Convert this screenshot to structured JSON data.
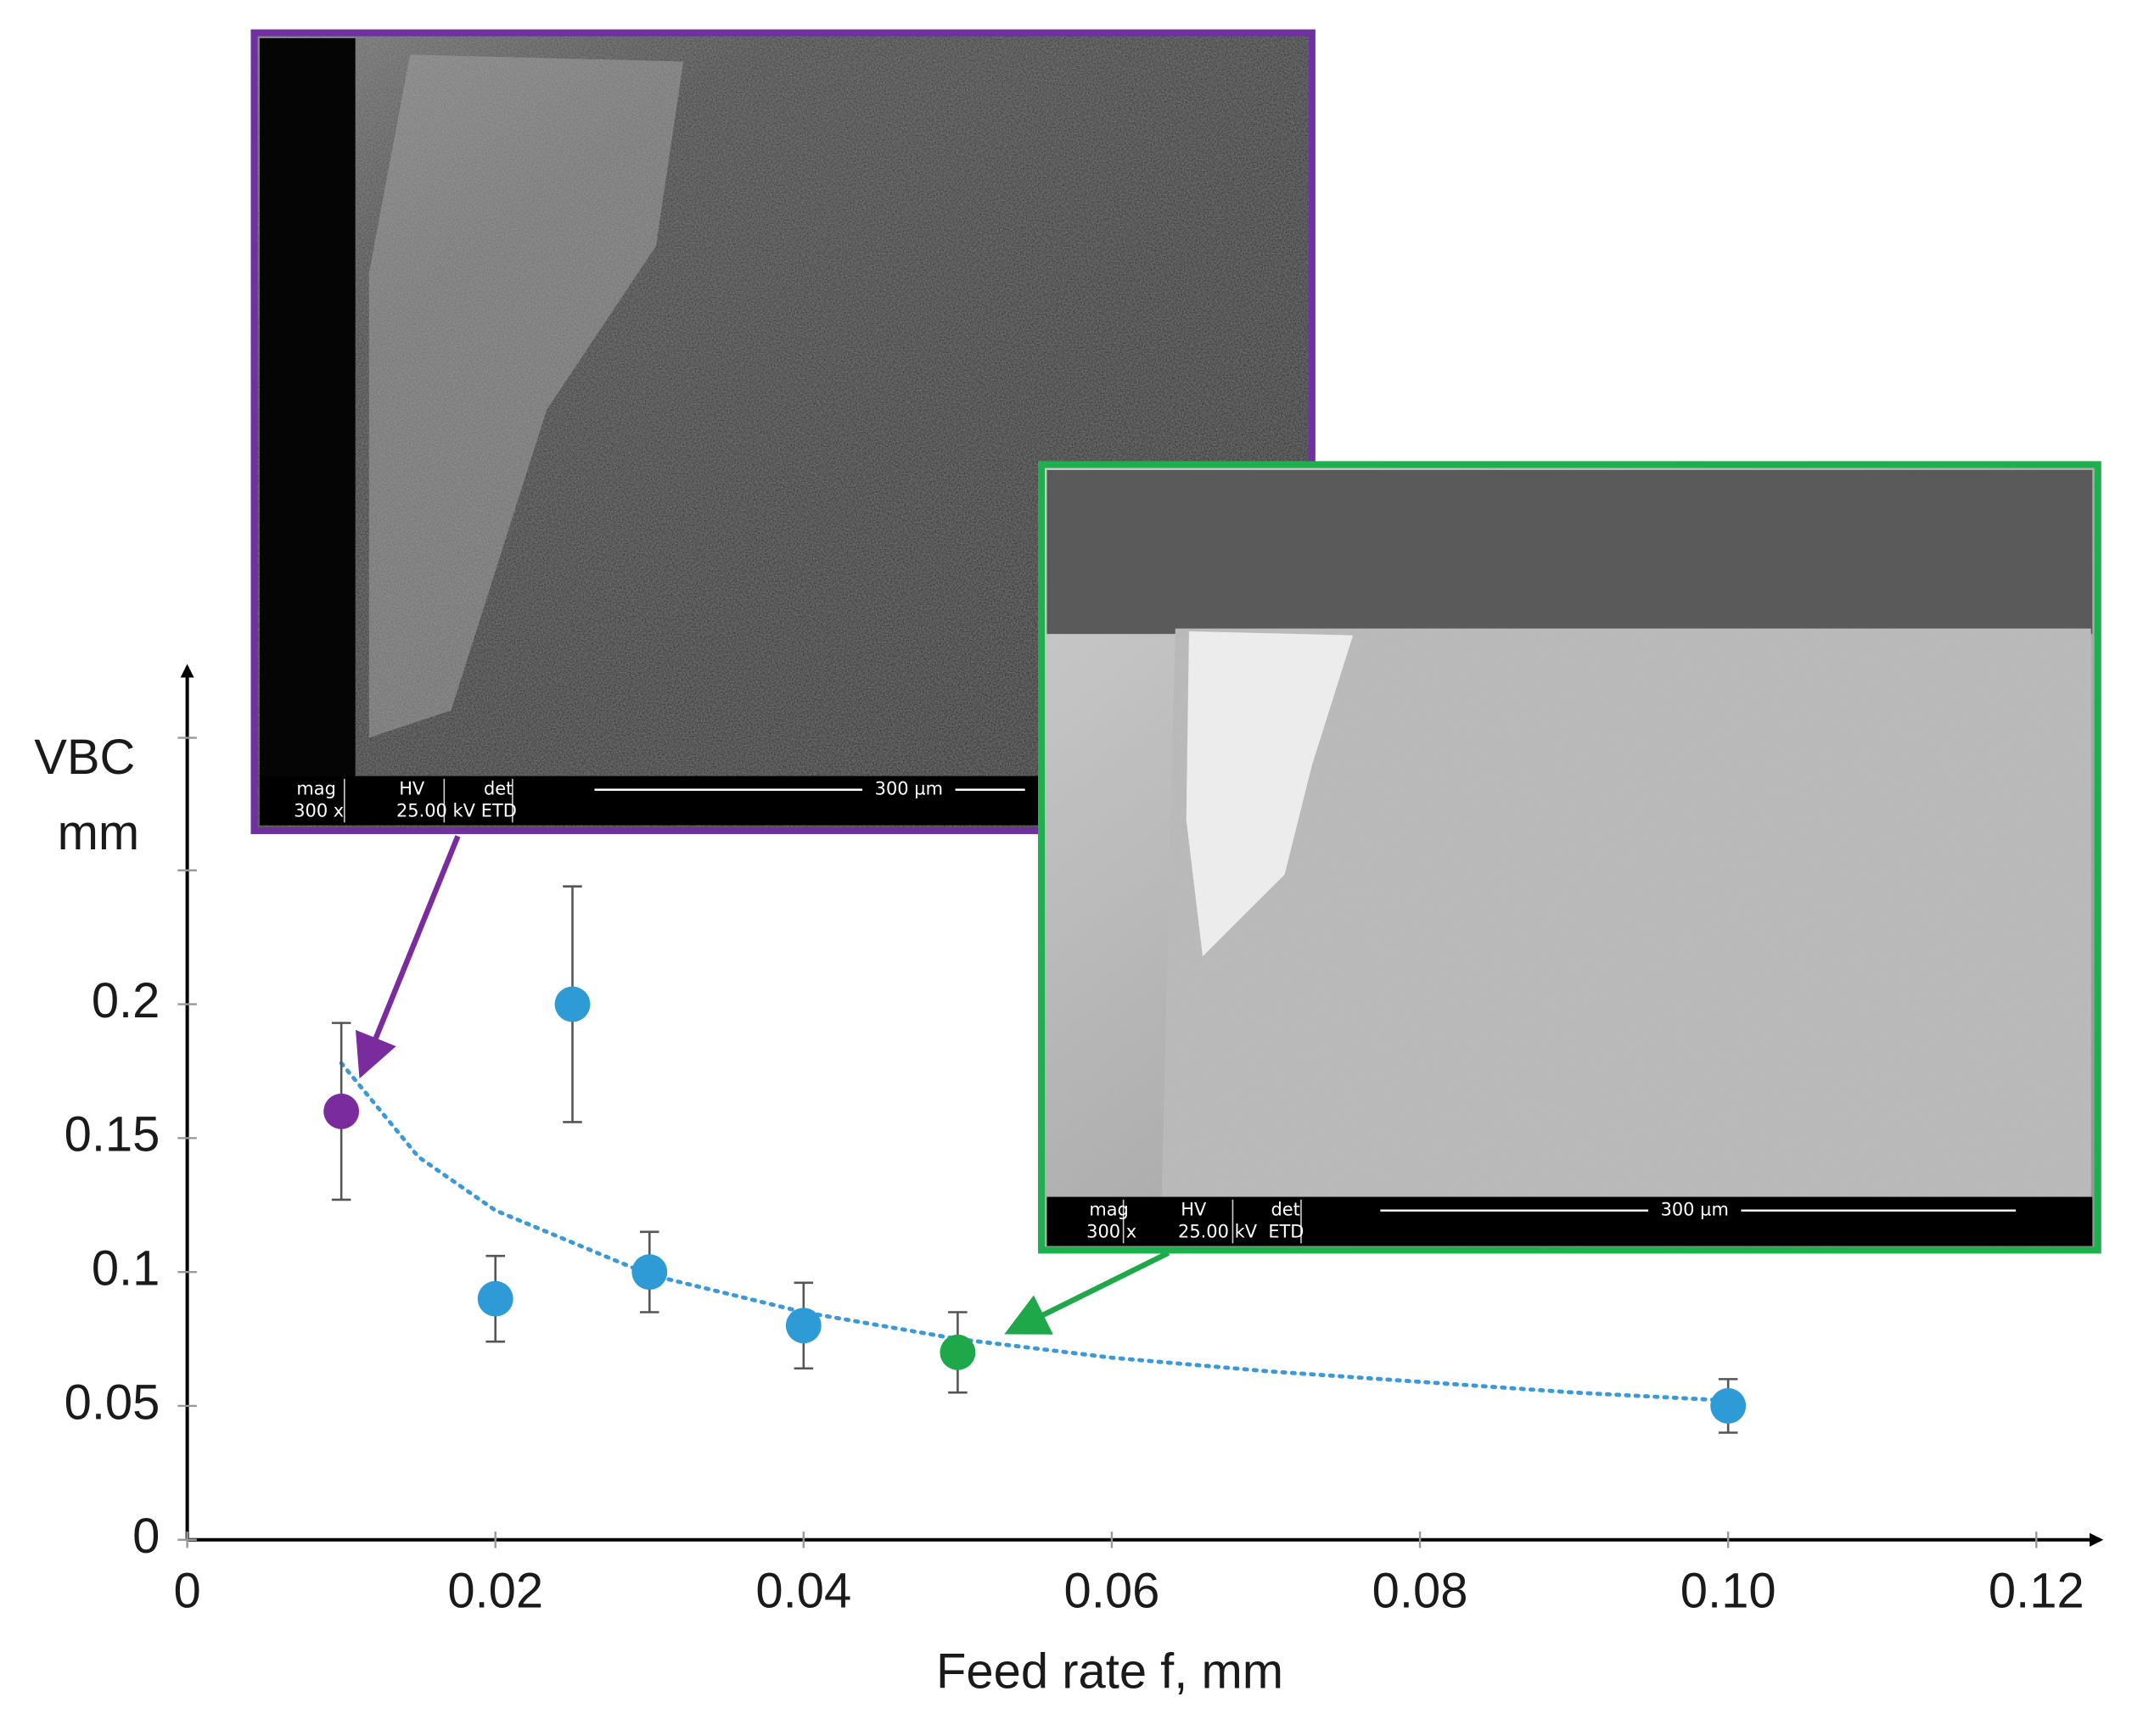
{
  "chart_data": {
    "type": "scatter",
    "xlabel": "Feed rate f, mm",
    "ylabel": [
      "VBC",
      "mm"
    ],
    "xlim": [
      0,
      0.12
    ],
    "ylim": [
      0,
      0.32
    ],
    "xticks": [
      0,
      0.02,
      0.04,
      0.06,
      0.08,
      {
        "value": 0.1,
        "label": "0.10"
      },
      0.12
    ],
    "yticks": [
      0,
      0.05,
      0.1,
      0.15,
      0.2
    ],
    "series": [
      {
        "x": [
          0.01,
          0.02,
          0.025,
          0.03,
          0.04,
          0.05,
          0.1
        ],
        "values": [
          0.16,
          0.09,
          0.2,
          0.1,
          0.08,
          0.07,
          0.05
        ],
        "errors": [
          0.033,
          0.016,
          0.044,
          0.015,
          0.016,
          0.015,
          0.01
        ],
        "colors": [
          "#7a2c9e",
          "#2e9bd6",
          "#2e9bd6",
          "#2e9bd6",
          "#2e9bd6",
          "#1fa84a",
          "#2e9bd6"
        ]
      }
    ],
    "trendline": {
      "x": [
        0.01,
        0.015,
        0.02,
        0.03,
        0.04,
        0.05,
        0.06,
        0.07,
        0.08,
        0.09,
        0.1
      ],
      "values": [
        0.178,
        0.143,
        0.123,
        0.099,
        0.085,
        0.075,
        0.068,
        0.063,
        0.059,
        0.055,
        0.052
      ],
      "color": "#3a9ad9"
    }
  },
  "insets": [
    {
      "border_color": "#7030a0",
      "databar": [
        [
          "mag",
          "300 x"
        ],
        [
          "HV",
          "25.00 kV"
        ],
        [
          "det",
          "ETD"
        ]
      ],
      "scale": "300 µm"
    },
    {
      "border_color": "#1db04c",
      "databar": [
        [
          "mag",
          "300 x"
        ],
        [
          "HV",
          "25.00 kV"
        ],
        [
          "det",
          "ETD"
        ]
      ],
      "scale": "300 µm"
    }
  ]
}
